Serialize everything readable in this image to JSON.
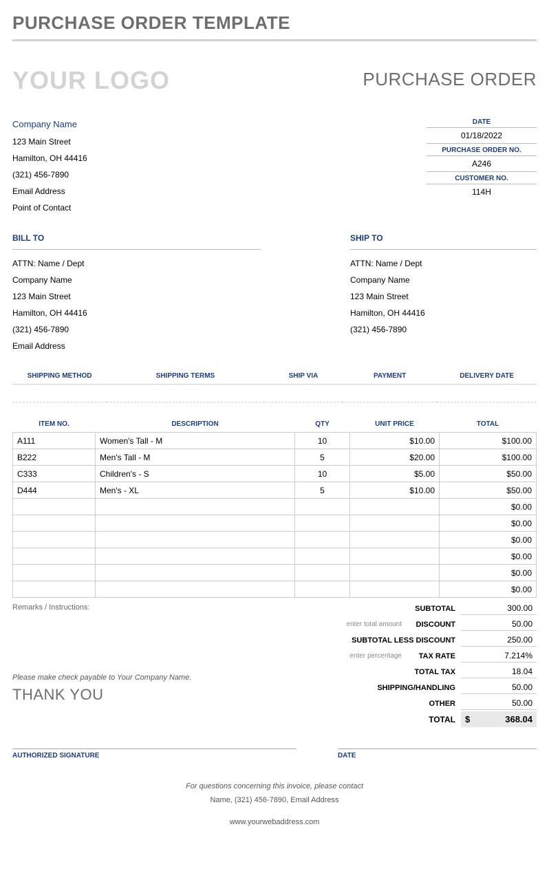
{
  "header": {
    "page_title": "PURCHASE ORDER TEMPLATE",
    "logo_placeholder": "YOUR LOGO",
    "doc_title": "PURCHASE ORDER"
  },
  "company": {
    "name": "Company Name",
    "street": "123 Main Street",
    "city": "Hamilton, OH 44416",
    "phone": "(321) 456-7890",
    "email": "Email Address",
    "contact": "Point of Contact"
  },
  "meta": {
    "date_label": "DATE",
    "date_value": "01/18/2022",
    "po_label": "PURCHASE ORDER NO.",
    "po_value": "A246",
    "cust_label": "CUSTOMER NO.",
    "cust_value": "114H"
  },
  "bill_to": {
    "label": "BILL TO",
    "attn": "ATTN: Name / Dept",
    "company": "Company Name",
    "street": "123 Main Street",
    "city": "Hamilton, OH 44416",
    "phone": "(321) 456-7890",
    "email": "Email Address"
  },
  "ship_to": {
    "label": "SHIP TO",
    "attn": "ATTN: Name / Dept",
    "company": "Company Name",
    "street": "123 Main Street",
    "city": "Hamilton, OH 44416",
    "phone": "(321) 456-7890"
  },
  "shipping": {
    "headers": [
      "SHIPPING METHOD",
      "SHIPPING TERMS",
      "SHIP VIA",
      "PAYMENT",
      "DELIVERY DATE"
    ],
    "values": [
      "",
      "",
      "",
      "",
      ""
    ]
  },
  "items": {
    "headers": [
      "ITEM NO.",
      "DESCRIPTION",
      "QTY",
      "UNIT PRICE",
      "TOTAL"
    ],
    "rows": [
      {
        "item": "A111",
        "desc": "Women's Tall - M",
        "qty": "10",
        "price": "$10.00",
        "total": "$100.00"
      },
      {
        "item": "B222",
        "desc": "Men's Tall - M",
        "qty": "5",
        "price": "$20.00",
        "total": "$100.00"
      },
      {
        "item": "C333",
        "desc": "Children's - S",
        "qty": "10",
        "price": "$5.00",
        "total": "$50.00"
      },
      {
        "item": "D444",
        "desc": "Men's - XL",
        "qty": "5",
        "price": "$10.00",
        "total": "$50.00"
      },
      {
        "item": "",
        "desc": "",
        "qty": "",
        "price": "",
        "total": "$0.00"
      },
      {
        "item": "",
        "desc": "",
        "qty": "",
        "price": "",
        "total": "$0.00"
      },
      {
        "item": "",
        "desc": "",
        "qty": "",
        "price": "",
        "total": "$0.00"
      },
      {
        "item": "",
        "desc": "",
        "qty": "",
        "price": "",
        "total": "$0.00"
      },
      {
        "item": "",
        "desc": "",
        "qty": "",
        "price": "",
        "total": "$0.00"
      },
      {
        "item": "",
        "desc": "",
        "qty": "",
        "price": "",
        "total": "$0.00"
      }
    ]
  },
  "remarks_label": "Remarks / Instructions:",
  "summary": {
    "subtotal_label": "SUBTOTAL",
    "subtotal_value": "300.00",
    "discount_hint": "enter total amount",
    "discount_label": "DISCOUNT",
    "discount_value": "50.00",
    "less_label": "SUBTOTAL LESS DISCOUNT",
    "less_value": "250.00",
    "taxrate_hint": "enter percentage",
    "taxrate_label": "TAX RATE",
    "taxrate_value": "7.214%",
    "tax_label": "TOTAL TAX",
    "tax_value": "18.04",
    "shipping_label": "SHIPPING/HANDLING",
    "shipping_value": "50.00",
    "other_label": "OTHER",
    "other_value": "50.00",
    "total_label": "TOTAL",
    "total_currency": "$",
    "total_value": "368.04"
  },
  "payable": "Please make check payable to Your Company Name.",
  "thankyou": "THANK YOU",
  "signature": {
    "auth_label": "AUTHORIZED SIGNATURE",
    "date_label": "DATE"
  },
  "footer": {
    "question": "For questions concerning this invoice, please contact",
    "contact": "Name, (321) 456-7890, Email Address",
    "web": "www.yourwebaddress.com"
  }
}
